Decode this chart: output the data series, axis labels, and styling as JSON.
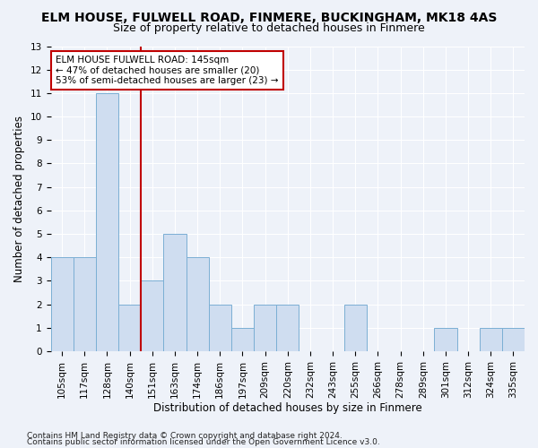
{
  "title": "ELM HOUSE, FULWELL ROAD, FINMERE, BUCKINGHAM, MK18 4AS",
  "subtitle": "Size of property relative to detached houses in Finmere",
  "xlabel": "Distribution of detached houses by size in Finmere",
  "ylabel": "Number of detached properties",
  "categories": [
    "105sqm",
    "117sqm",
    "128sqm",
    "140sqm",
    "151sqm",
    "163sqm",
    "174sqm",
    "186sqm",
    "197sqm",
    "209sqm",
    "220sqm",
    "232sqm",
    "243sqm",
    "255sqm",
    "266sqm",
    "278sqm",
    "289sqm",
    "301sqm",
    "312sqm",
    "324sqm",
    "335sqm"
  ],
  "values": [
    4,
    4,
    11,
    2,
    3,
    5,
    4,
    2,
    1,
    2,
    2,
    0,
    0,
    2,
    0,
    0,
    0,
    1,
    0,
    1,
    1
  ],
  "bar_color": "#cfddf0",
  "bar_edge_color": "#7bafd4",
  "vline_x_index": 3,
  "vline_color": "#c00000",
  "annotation_line1": "ELM HOUSE FULWELL ROAD: 145sqm",
  "annotation_line2": "← 47% of detached houses are smaller (20)",
  "annotation_line3": "53% of semi-detached houses are larger (23) →",
  "annotation_box_color": "white",
  "annotation_box_edge": "#c00000",
  "ylim": [
    0,
    13
  ],
  "yticks": [
    0,
    1,
    2,
    3,
    4,
    5,
    6,
    7,
    8,
    9,
    10,
    11,
    12,
    13
  ],
  "footer1": "Contains HM Land Registry data © Crown copyright and database right 2024.",
  "footer2": "Contains public sector information licensed under the Open Government Licence v3.0.",
  "title_fontsize": 10,
  "subtitle_fontsize": 9,
  "xlabel_fontsize": 8.5,
  "ylabel_fontsize": 8.5,
  "tick_fontsize": 7.5,
  "annotation_fontsize": 7.5,
  "footer_fontsize": 6.5,
  "bg_color": "#eef2f9",
  "grid_color": "#ffffff"
}
